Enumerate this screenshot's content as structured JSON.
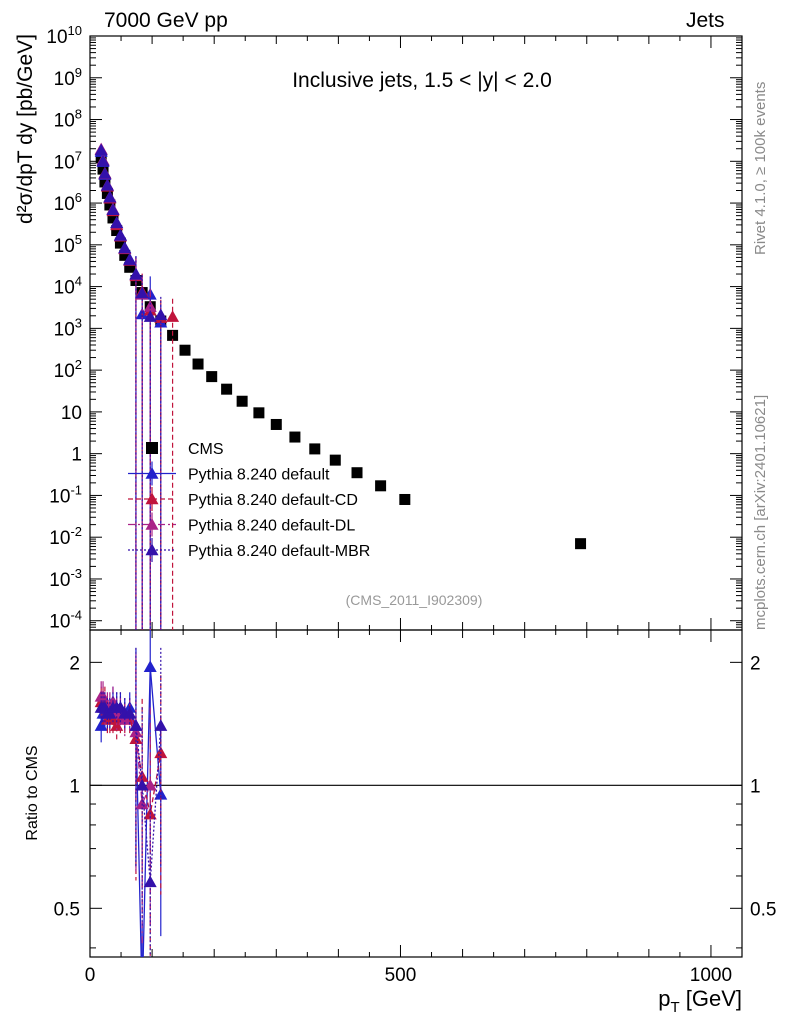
{
  "header": {
    "energy": "7000 GeV pp",
    "process": "Jets"
  },
  "side_labels": {
    "rivet": "Rivet 4.1.0, ≥ 100k events",
    "mcplots": "mcplots.cern.ch [arXiv:2401.10621]"
  },
  "chart_data": [
    {
      "type": "scatter",
      "panel": "main",
      "title": "Inclusive jets, 1.5 < |y| < 2.0",
      "xlabel": "p_T [GeV]",
      "ylabel": "d²σ/dp_T dy [pb/GeV]",
      "yscale": "log",
      "xlim": [
        0,
        1050
      ],
      "ylim": [
        6e-05,
        10000000000
      ],
      "y_tick_labels": [
        "10^10",
        "10^9",
        "10^8",
        "10^7",
        "10^6",
        "10^5",
        "10^4",
        "10^3",
        "10^2",
        "10",
        "1",
        "10^-1",
        "10^-2",
        "10^-3",
        "10^-4"
      ],
      "analysis_id": "(CMS_2011_I902309)",
      "legend_position": "middle-left",
      "series": [
        {
          "name": "CMS",
          "color": "#000000",
          "marker": "square",
          "line": "none",
          "x": [
            18,
            21,
            24,
            28,
            32,
            37,
            43,
            49,
            56,
            64,
            74,
            84,
            97,
            114,
            133,
            153,
            174,
            196,
            220,
            245,
            272,
            300,
            330,
            362,
            395,
            430,
            468,
            507,
            548,
            592,
            638,
            686,
            737,
            790
          ],
          "y": [
            12000000,
            6500000,
            3200000,
            1700000,
            900000,
            440000,
            220000,
            110000,
            56000,
            29000,
            14000,
            7200,
            3300,
            1500,
            680,
            300,
            140,
            70,
            35,
            18,
            9.5,
            5,
            2.5,
            1.3,
            0.7,
            0.35,
            0.17,
            0.08,
            null,
            null,
            null,
            null,
            null,
            0.007
          ]
        },
        {
          "name": "Pythia 8.240 default",
          "color": "#2222cc",
          "marker": "triangle",
          "line": "solid",
          "x": [
            18,
            21,
            24,
            28,
            32,
            37,
            43,
            49,
            56,
            64,
            74,
            84,
            97,
            114
          ],
          "y": [
            17000000,
            9800000,
            4800000,
            2600000,
            1350000,
            700000,
            340000,
            170000,
            85000,
            45000,
            20000,
            2200,
            6500,
            1400
          ]
        },
        {
          "name": "Pythia 8.240 default-CD",
          "color": "#c0143c",
          "marker": "triangle",
          "line": "dashed",
          "x": [
            18,
            21,
            24,
            28,
            32,
            37,
            43,
            49,
            56,
            64,
            74,
            84,
            97,
            114,
            133
          ],
          "y": [
            19000000,
            10500000,
            5200000,
            2500000,
            1300000,
            650000,
            300000,
            160000,
            80000,
            42000,
            18000,
            7600,
            2700,
            1800,
            1900
          ]
        },
        {
          "name": "Pythia 8.240 default-DL",
          "color": "#aa2288",
          "marker": "triangle",
          "line": "dashdot",
          "x": [
            18,
            21,
            24,
            28,
            32,
            37,
            43,
            49,
            56,
            64,
            74,
            84,
            97
          ],
          "y": [
            19500000,
            10800000,
            5000000,
            2700000,
            1400000,
            720000,
            330000,
            165000,
            82000,
            43000,
            19000,
            6500,
            3300
          ]
        },
        {
          "name": "Pythia 8.240 default-MBR",
          "color": "#3311aa",
          "marker": "triangle",
          "line": "dotted",
          "x": [
            18,
            21,
            24,
            28,
            32,
            37,
            43,
            49,
            56,
            64,
            74,
            84,
            97,
            114
          ],
          "y": [
            18500000,
            10200000,
            5100000,
            2650000,
            1380000,
            690000,
            335000,
            168000,
            84000,
            44000,
            19500,
            7000,
            1900,
            2100
          ]
        }
      ]
    },
    {
      "type": "line",
      "panel": "ratio",
      "xlabel": "p_T [GeV]",
      "ylabel": "Ratio to CMS",
      "yscale": "log",
      "xlim": [
        0,
        1050
      ],
      "ylim": [
        0.38,
        2.4
      ],
      "reference_line": 1,
      "x_tick_labels": [
        "0",
        "500",
        "1000"
      ],
      "y_tick_labels": [
        "2",
        "1",
        "0.5"
      ],
      "series": [
        {
          "name": "Pythia 8.240 default",
          "x": [
            18,
            21,
            24,
            28,
            32,
            37,
            43,
            49,
            56,
            64,
            74,
            84,
            97,
            114
          ],
          "y": [
            1.4,
            1.5,
            1.5,
            1.5,
            1.5,
            1.6,
            1.55,
            1.55,
            1.5,
            1.55,
            1.4,
            0.3,
            1.95,
            0.95
          ]
        },
        {
          "name": "Pythia 8.240 default-CD",
          "x": [
            18,
            21,
            24,
            28,
            32,
            37,
            43,
            49,
            56,
            64,
            74,
            84,
            97,
            114
          ],
          "y": [
            1.6,
            1.6,
            1.6,
            1.45,
            1.45,
            1.45,
            1.4,
            1.45,
            1.45,
            1.45,
            1.3,
            1.05,
            0.85,
            1.2
          ]
        },
        {
          "name": "Pythia 8.240 default-DL",
          "x": [
            18,
            21,
            24,
            28,
            32,
            37,
            43,
            49,
            56,
            64,
            74,
            84,
            97
          ],
          "y": [
            1.65,
            1.65,
            1.55,
            1.55,
            1.55,
            1.6,
            1.5,
            1.5,
            1.45,
            1.5,
            1.35,
            0.9,
            1.0
          ]
        },
        {
          "name": "Pythia 8.240 default-MBR",
          "x": [
            18,
            21,
            24,
            28,
            32,
            37,
            43,
            49,
            56,
            64,
            74,
            84,
            97,
            114
          ],
          "y": [
            1.55,
            1.55,
            1.55,
            1.5,
            1.5,
            1.55,
            1.55,
            1.55,
            1.5,
            1.5,
            1.4,
            1.0,
            0.58,
            1.4
          ]
        }
      ]
    }
  ]
}
